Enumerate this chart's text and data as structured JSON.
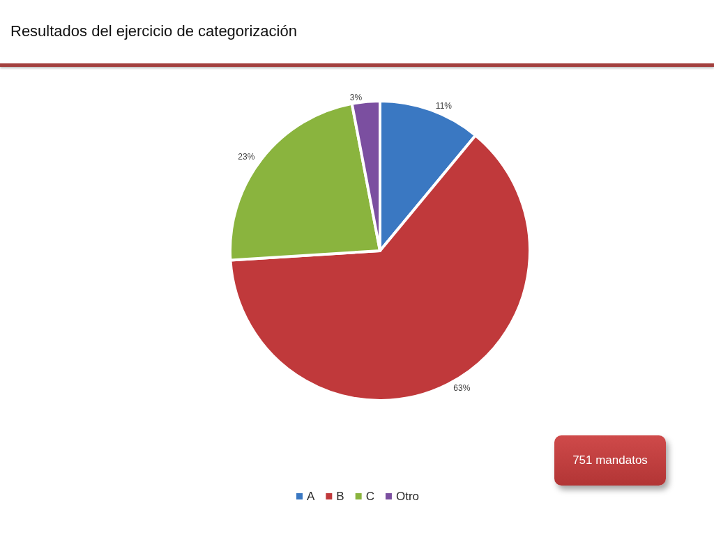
{
  "chart_data": {
    "type": "pie",
    "title": "Resultados del ejercicio de categorización",
    "categories": [
      "A",
      "B",
      "C",
      "Otro"
    ],
    "values": [
      11,
      63,
      23,
      3
    ],
    "colors": [
      "#3a78c2",
      "#c0393b",
      "#8ab43e",
      "#7b4fa0"
    ],
    "value_labels": [
      "11%",
      "63%",
      "23%",
      "3%"
    ],
    "legend": "bottom",
    "annotations": [
      "751 mandatos"
    ]
  }
}
